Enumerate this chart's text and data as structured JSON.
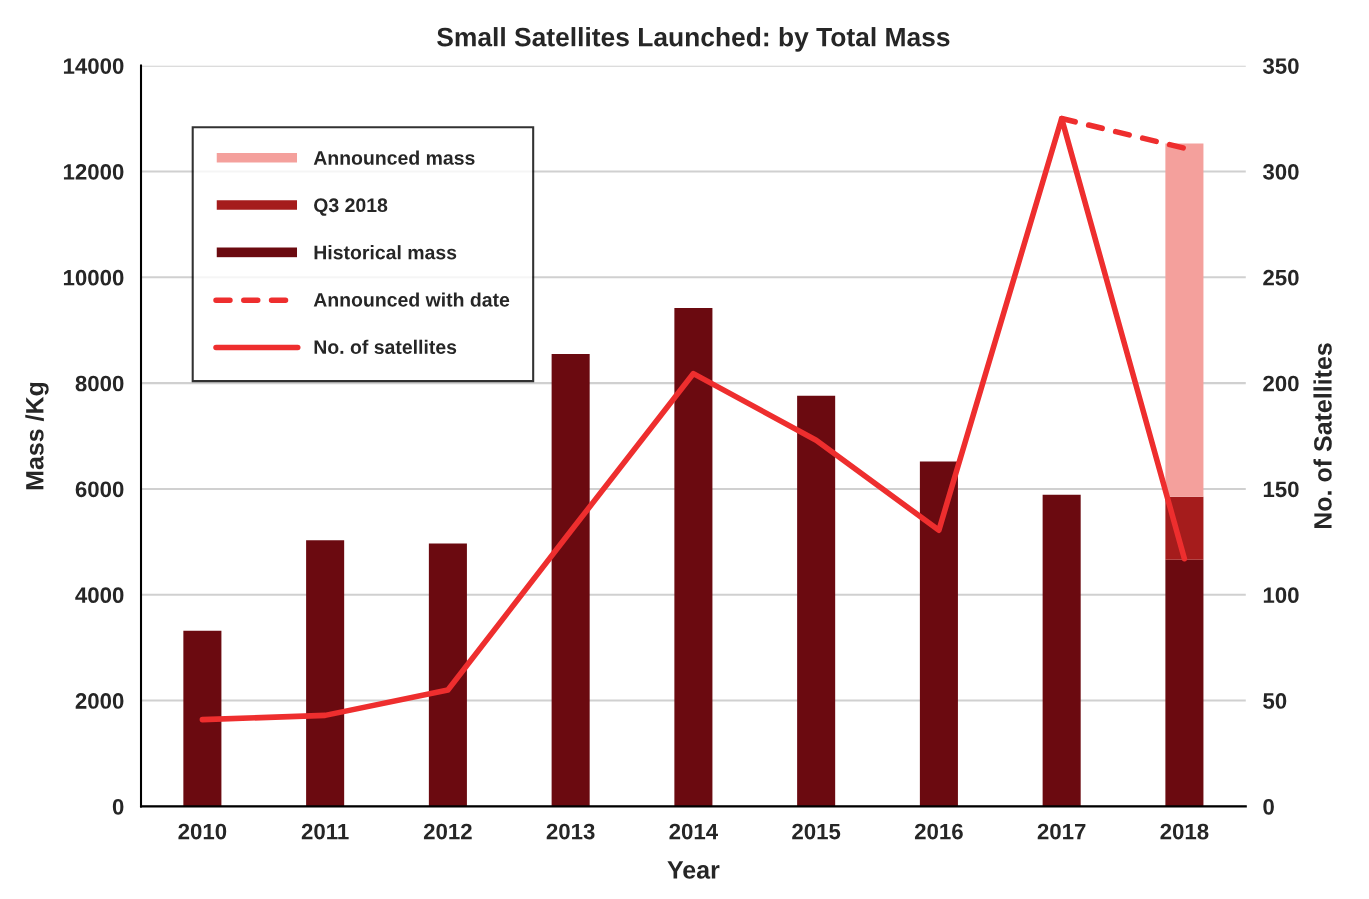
{
  "chart_data": {
    "type": "bar",
    "title": "Small Satellites Launched: by Total Mass",
    "xlabel": "Year",
    "ylabel": "Mass /Kg",
    "y2label": "No. of Satellites",
    "categories": [
      "2010",
      "2011",
      "2012",
      "2013",
      "2014",
      "2015",
      "2016",
      "2017",
      "2018"
    ],
    "stacked": true,
    "series": [
      {
        "name": "Historical mass",
        "color": "#6b0a10",
        "values": [
          3320,
          5030,
          4970,
          8550,
          9420,
          7760,
          6520,
          5890,
          4660
        ]
      },
      {
        "name": "Q3 2018",
        "color": "#a51c1c",
        "values": [
          null,
          null,
          null,
          null,
          null,
          null,
          null,
          null,
          1190
        ]
      },
      {
        "name": "Announced mass",
        "color": "#f4a09c",
        "values": [
          null,
          null,
          null,
          null,
          null,
          null,
          null,
          null,
          6680
        ]
      },
      {
        "name": "Announced with date",
        "type": "line",
        "axis": "y2",
        "line_style": "dashed",
        "color": "#ee2e2e",
        "values": [
          null,
          null,
          null,
          null,
          null,
          null,
          null,
          325,
          311
        ]
      },
      {
        "name": "No. of satellites",
        "type": "line",
        "axis": "y2",
        "line_style": "solid",
        "color": "#ee2e2e",
        "values": [
          41,
          43,
          55,
          130,
          204.5,
          173,
          130.5,
          325,
          117
        ]
      }
    ],
    "ylim": [
      0,
      14000
    ],
    "yticks": [
      0,
      2000,
      4000,
      6000,
      8000,
      10000,
      12000,
      14000
    ],
    "y2lim": [
      0,
      350
    ],
    "y2ticks": [
      0,
      50,
      100,
      150,
      200,
      250,
      300,
      350
    ],
    "grid": "y",
    "legend": "top left"
  }
}
